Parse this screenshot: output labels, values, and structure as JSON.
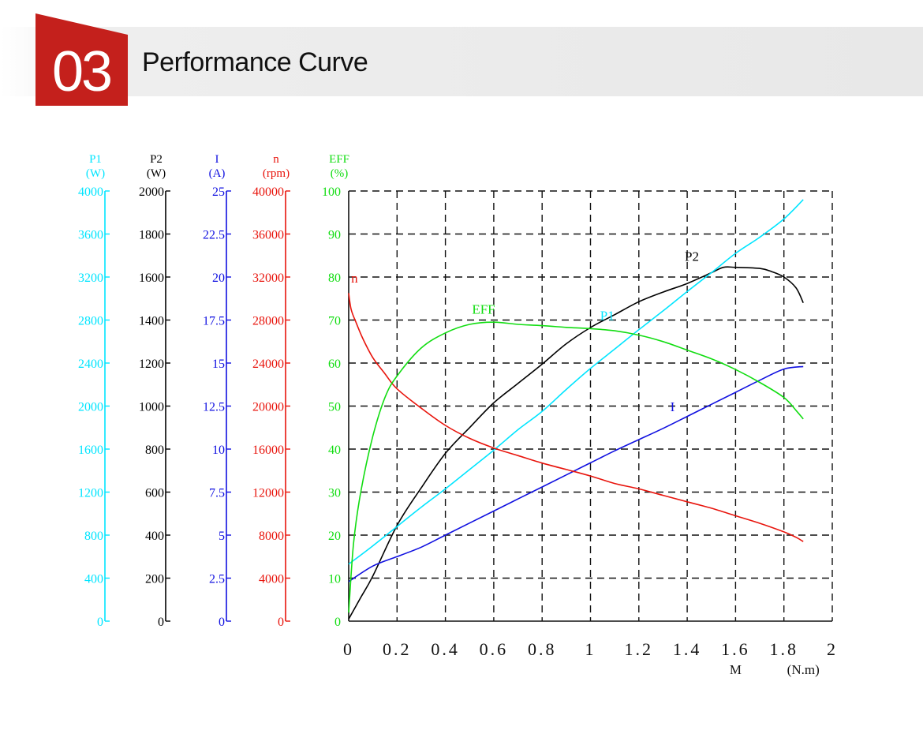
{
  "header": {
    "number": "03",
    "title": "Performance Curve",
    "badge_color": "#c4201c"
  },
  "chart_data": {
    "type": "line",
    "title": "",
    "x": {
      "min": 0,
      "max": 2,
      "ticks": [
        "0",
        "0.2",
        "0.4",
        "0.6",
        "0.8",
        "1",
        "1.2",
        "1.4",
        "1.6",
        "1.8",
        "2"
      ],
      "tick_values": [
        0,
        0.2,
        0.4,
        0.6,
        0.8,
        1,
        1.2,
        1.4,
        1.6,
        1.8,
        2
      ],
      "label": "M",
      "unit": "(N.m)"
    },
    "grid": true,
    "axes": [
      {
        "id": "P1",
        "name": "P1",
        "unit": "(W)",
        "color": "#00e5ff",
        "min": 0,
        "max": 4000,
        "ticks": [
          "4000",
          "3600",
          "3200",
          "2800",
          "2400",
          "2000",
          "1600",
          "1200",
          "800",
          "400",
          "0"
        ]
      },
      {
        "id": "P2",
        "name": "P2",
        "unit": "(W)",
        "color": "#000000",
        "min": 0,
        "max": 2000,
        "ticks": [
          "2000",
          "1800",
          "1600",
          "1400",
          "1200",
          "1000",
          "800",
          "600",
          "400",
          "200",
          "0"
        ]
      },
      {
        "id": "I",
        "name": "I",
        "unit": "(A)",
        "color": "#1010e0",
        "min": 0,
        "max": 25,
        "ticks": [
          "25",
          "22.5",
          "20",
          "17.5",
          "15",
          "12.5",
          "10",
          "7.5",
          "5",
          "2.5",
          "0"
        ]
      },
      {
        "id": "n",
        "name": "n",
        "unit": "(rpm)",
        "color": "#e8140c",
        "min": 0,
        "max": 40000,
        "ticks": [
          "40000",
          "36000",
          "32000",
          "28000",
          "24000",
          "20000",
          "16000",
          "12000",
          "8000",
          "4000",
          "0"
        ]
      },
      {
        "id": "EFF",
        "name": "EFF",
        "unit": "(%)",
        "color": "#11dd11",
        "min": 0,
        "max": 100,
        "ticks": [
          "100",
          "90",
          "80",
          "70",
          "60",
          "50",
          "40",
          "30",
          "20",
          "10",
          "0"
        ]
      }
    ],
    "series": [
      {
        "name": "P2",
        "axis": "P2",
        "color": "#000000",
        "label_at": [
          1.39,
          1675
        ],
        "x": [
          0,
          0.05,
          0.1,
          0.2,
          0.3,
          0.4,
          0.5,
          0.6,
          0.7,
          0.8,
          0.9,
          1.0,
          1.1,
          1.2,
          1.3,
          1.4,
          1.5,
          1.55,
          1.6,
          1.7,
          1.75,
          1.8,
          1.85,
          1.88
        ],
        "values": [
          10,
          110,
          210,
          445,
          620,
          780,
          900,
          1015,
          1105,
          1195,
          1290,
          1365,
          1425,
          1485,
          1530,
          1570,
          1620,
          1645,
          1645,
          1640,
          1625,
          1600,
          1550,
          1480
        ]
      },
      {
        "name": "P1",
        "axis": "P1",
        "color": "#00e5ff",
        "label_at": [
          1.04,
          2800
        ],
        "x": [
          0,
          0.1,
          0.2,
          0.3,
          0.4,
          0.5,
          0.6,
          0.7,
          0.8,
          0.9,
          1.0,
          1.1,
          1.2,
          1.3,
          1.4,
          1.5,
          1.6,
          1.7,
          1.8,
          1.88
        ],
        "values": [
          530,
          700,
          880,
          1060,
          1230,
          1410,
          1590,
          1780,
          1950,
          2155,
          2350,
          2530,
          2710,
          2885,
          3065,
          3240,
          3420,
          3570,
          3740,
          3920
        ]
      },
      {
        "name": "I",
        "axis": "I",
        "color": "#1010e0",
        "label_at": [
          1.33,
          12.2
        ],
        "x": [
          0,
          0.1,
          0.2,
          0.3,
          0.4,
          0.5,
          0.6,
          0.7,
          0.8,
          0.9,
          1.0,
          1.1,
          1.2,
          1.3,
          1.4,
          1.5,
          1.6,
          1.7,
          1.8,
          1.88
        ],
        "values": [
          2.3,
          3.2,
          3.75,
          4.3,
          5.0,
          5.7,
          6.4,
          7.1,
          7.8,
          8.5,
          9.2,
          9.9,
          10.55,
          11.2,
          11.9,
          12.6,
          13.3,
          14.0,
          14.65,
          14.8
        ]
      },
      {
        "name": "n",
        "axis": "n",
        "color": "#e8140c",
        "label_at": [
          0.01,
          31500
        ],
        "x": [
          0,
          0.01,
          0.03,
          0.06,
          0.1,
          0.15,
          0.2,
          0.3,
          0.4,
          0.5,
          0.6,
          0.7,
          0.8,
          0.9,
          1.0,
          1.1,
          1.2,
          1.3,
          1.4,
          1.5,
          1.6,
          1.7,
          1.8,
          1.85,
          1.88
        ],
        "values": [
          30500,
          29000,
          27800,
          26200,
          24500,
          23000,
          21600,
          19800,
          18200,
          17000,
          16100,
          15400,
          14700,
          14100,
          13500,
          12800,
          12300,
          11700,
          11100,
          10500,
          9800,
          9100,
          8300,
          7800,
          7400
        ]
      },
      {
        "name": "EFF",
        "axis": "EFF",
        "color": "#11dd11",
        "label_at": [
          0.51,
          71.5
        ],
        "x": [
          0,
          0.02,
          0.05,
          0.1,
          0.15,
          0.2,
          0.3,
          0.4,
          0.5,
          0.6,
          0.7,
          0.8,
          0.9,
          1.0,
          1.1,
          1.2,
          1.3,
          1.4,
          1.5,
          1.6,
          1.7,
          1.8,
          1.85,
          1.88
        ],
        "values": [
          2,
          18,
          30,
          43,
          52,
          57,
          63.5,
          67,
          69,
          69.5,
          69,
          68.7,
          68.3,
          68,
          67.5,
          66.5,
          65,
          63,
          61,
          58.5,
          55.5,
          52,
          49,
          47
        ]
      }
    ]
  }
}
